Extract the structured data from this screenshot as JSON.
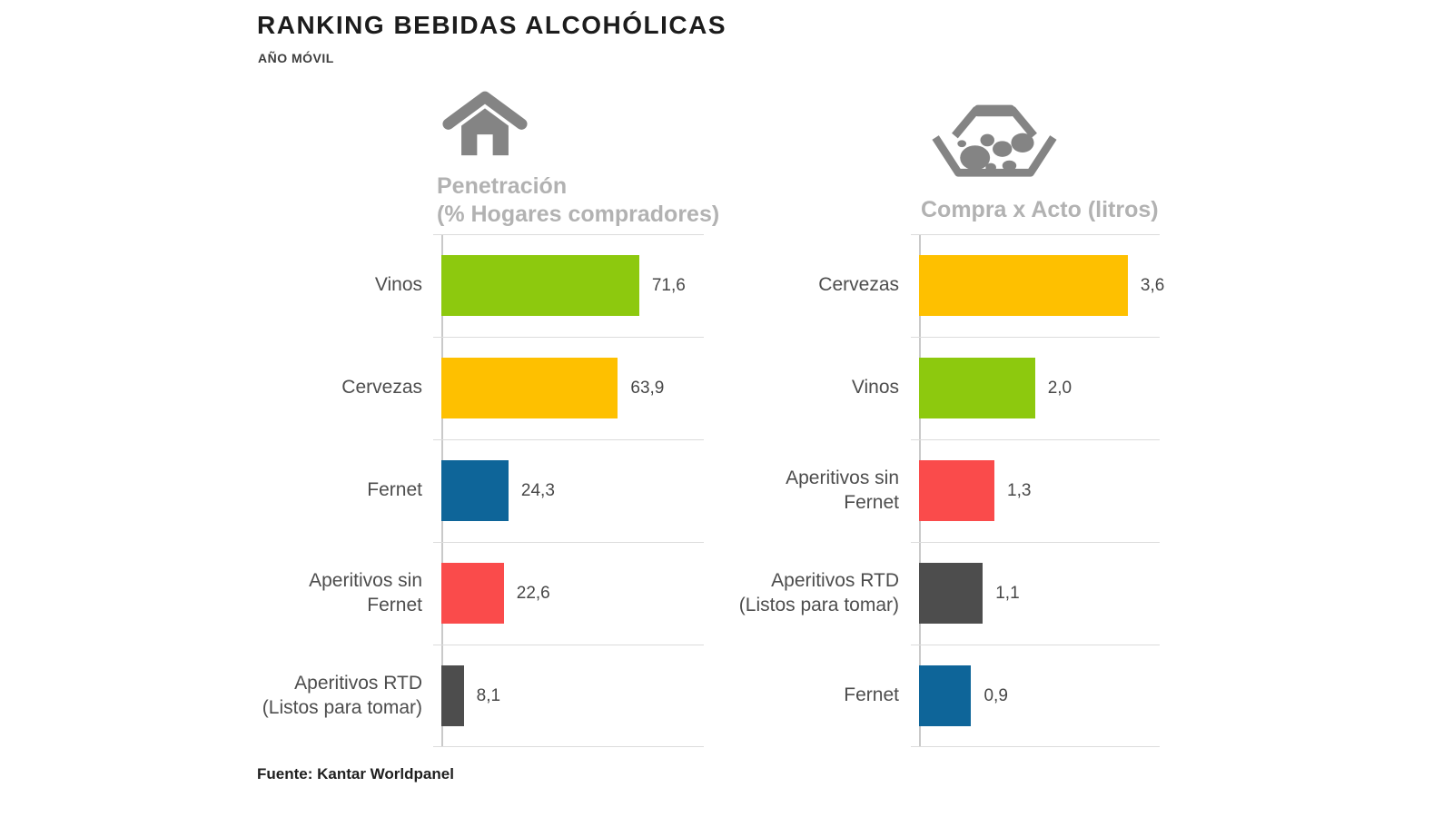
{
  "page": {
    "title": "RANKING BEBIDAS ALCOHÓLICAS",
    "subtitle": "AÑO MÓVIL",
    "source": "Fuente: Kantar Worldpanel"
  },
  "colors": {
    "green": "#8DC90E",
    "yellow": "#FEC000",
    "blue": "#0E6599",
    "red": "#FA4B4B",
    "dark": "#4D4D4D",
    "icon_gray": "#848484",
    "title_gray": "#B2B2B2",
    "axis_gray": "#C9C9C9",
    "grid_gray": "#DCDCDC",
    "label_gray": "#4D4D4D"
  },
  "chart_data": [
    {
      "type": "bar",
      "orientation": "horizontal",
      "icon": "house-icon",
      "title_lines": [
        "Penetración",
        "(% Hogares compradores)"
      ],
      "categories": [
        "Vinos",
        "Cervezas",
        "Fernet",
        "Aperitivos sin Fernet",
        "Aperitivos RTD (Listos para tomar)"
      ],
      "values": [
        71.6,
        63.9,
        24.3,
        22.6,
        8.1
      ],
      "value_labels": [
        "71,6",
        "63,9",
        "24,3",
        "22,6",
        "8,1"
      ],
      "bar_colors": [
        "green",
        "yellow",
        "blue",
        "red",
        "dark"
      ],
      "xlim": [
        0,
        95
      ],
      "grid": "row-separators",
      "legend": "none"
    },
    {
      "type": "bar",
      "orientation": "horizontal",
      "icon": "basket-icon",
      "title_lines": [
        "Compra x Acto (litros)"
      ],
      "categories": [
        "Cervezas",
        "Vinos",
        "Aperitivos sin Fernet",
        "Aperitivos RTD (Listos para tomar)",
        "Fernet"
      ],
      "values": [
        3.6,
        2.0,
        1.3,
        1.1,
        0.9
      ],
      "value_labels": [
        "3,6",
        "2,0",
        "1,3",
        "1,1",
        "0,9"
      ],
      "bar_colors": [
        "yellow",
        "green",
        "red",
        "dark",
        "blue"
      ],
      "xlim": [
        0,
        4.15
      ],
      "grid": "row-separators",
      "legend": "none"
    }
  ]
}
